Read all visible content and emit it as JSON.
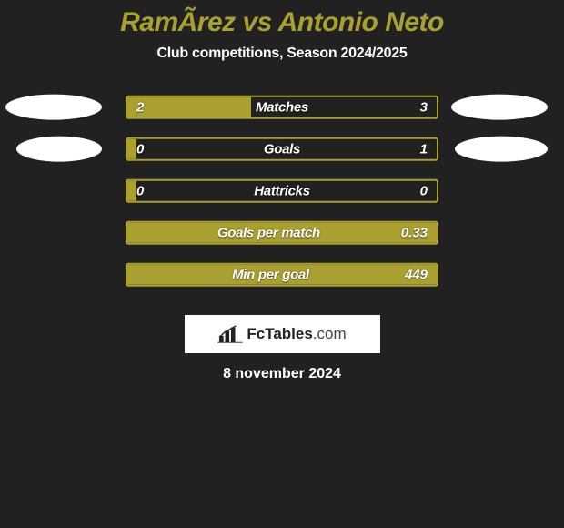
{
  "title_color": "#aaa031",
  "title": "RamÃ­rez vs Antonio Neto",
  "subtitle": "Club competitions, Season 2024/2025",
  "rows": [
    {
      "label": "Matches",
      "left": "2",
      "right": "3",
      "fill_pct": 40.0,
      "show_ellipses": true,
      "ellipse_left_w": 106,
      "ellipse_right_w": 106
    },
    {
      "label": "Goals",
      "left": "0",
      "right": "1",
      "fill_pct": 3.0,
      "show_ellipses": true,
      "ellipse_left_w": 94,
      "ellipse_right_w": 102
    },
    {
      "label": "Hattricks",
      "left": "0",
      "right": "0",
      "fill_pct": 3.0,
      "show_ellipses": false
    },
    {
      "label": "Goals per match",
      "left": "",
      "right": "0.33",
      "fill_pct": 100.0,
      "show_ellipses": false
    },
    {
      "label": "Min per goal",
      "left": "",
      "right": "449",
      "fill_pct": 100.0,
      "show_ellipses": false
    }
  ],
  "bar_border_color": "#aaa031",
  "bar_fill_color": "#aaa031",
  "ellipse_color": "#ffffff",
  "value_text_color": "#ffffff",
  "logo_text_bold": "FcTables",
  "logo_text_rest": ".com",
  "date": "8 november 2024",
  "background": "#212121"
}
